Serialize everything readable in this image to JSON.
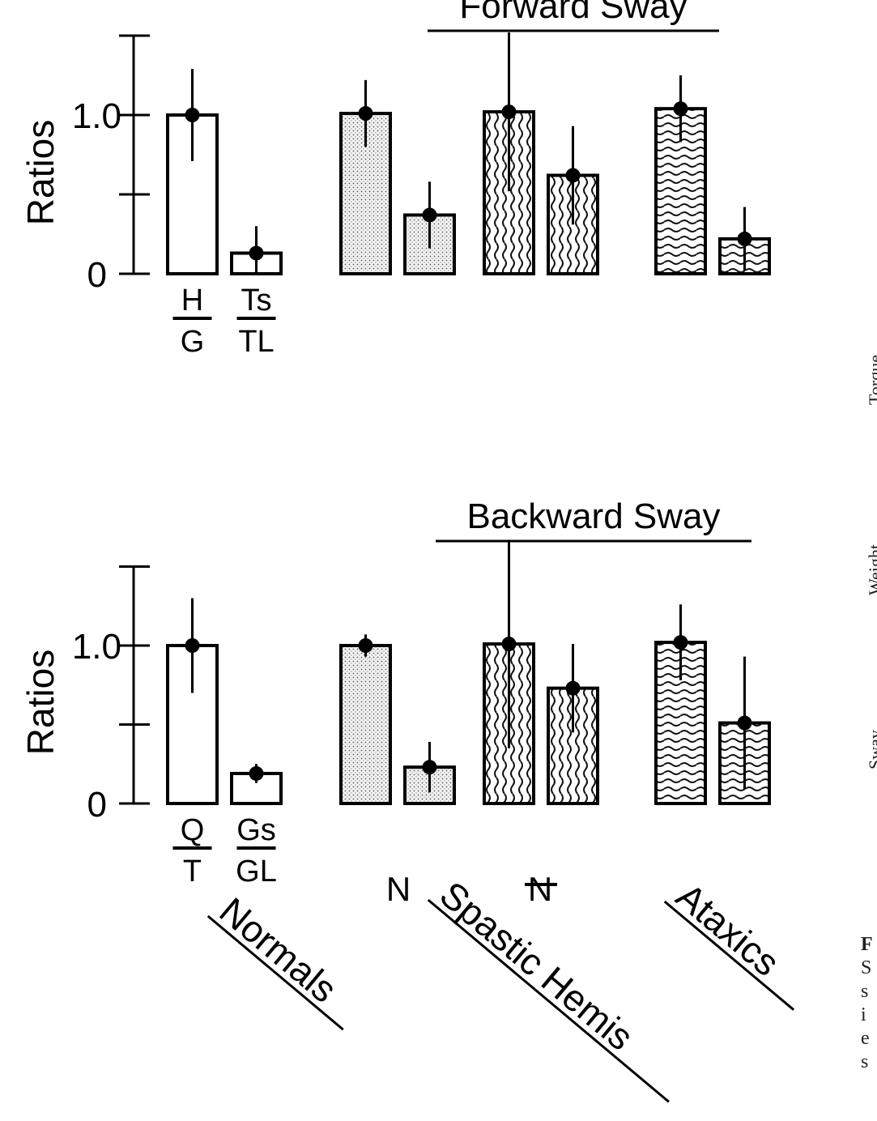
{
  "chart_data": [
    {
      "type": "bar",
      "title": "Forward Sway",
      "ylabel": "Ratios",
      "ylim": [
        0,
        1.5
      ],
      "yticks": [
        "0",
        "1.0"
      ],
      "normals_labels": [
        [
          "H",
          "G"
        ],
        [
          "Ts",
          "TL"
        ]
      ],
      "series": [
        {
          "group": "Normals",
          "values": [
            1.0,
            0.13
          ],
          "errors": [
            0.29,
            0.17
          ],
          "pattern": "none"
        },
        {
          "group": "Spastic Hemis N",
          "values": [
            1.01,
            0.37
          ],
          "errors": [
            0.21,
            0.21
          ],
          "pattern": "dots"
        },
        {
          "group": "Spastic Hemis affected",
          "values": [
            1.02,
            0.62
          ],
          "errors": [
            0.5,
            0.31
          ],
          "pattern": "vwave"
        },
        {
          "group": "Ataxics",
          "values": [
            1.04,
            0.22
          ],
          "errors": [
            0.21,
            0.2
          ],
          "pattern": "hwave"
        }
      ]
    },
    {
      "type": "bar",
      "title": "Backward Sway",
      "ylabel": "Ratios",
      "ylim": [
        0,
        1.5
      ],
      "yticks": [
        "0",
        "1.0"
      ],
      "normals_labels": [
        [
          "Q",
          "T"
        ],
        [
          "Gs",
          "GL"
        ]
      ],
      "series": [
        {
          "group": "Normals",
          "values": [
            1.0,
            0.19
          ],
          "errors": [
            0.3,
            0.06
          ],
          "pattern": "none"
        },
        {
          "group": "Spastic Hemis N",
          "values": [
            1.0,
            0.23
          ],
          "errors": [
            0.07,
            0.16
          ],
          "pattern": "dots"
        },
        {
          "group": "Spastic Hemis affected",
          "values": [
            1.01,
            0.73
          ],
          "errors": [
            0.66,
            0.28
          ],
          "pattern": "vwave"
        },
        {
          "group": "Ataxics",
          "values": [
            1.02,
            0.51
          ],
          "errors": [
            0.24,
            0.42
          ],
          "pattern": "hwave"
        }
      ]
    }
  ],
  "bottom_labels": {
    "normals": "Normals",
    "spastic": "Spastic Hemis",
    "ataxics": "Ataxics",
    "n_label": "N",
    "n_struck_label": "N"
  },
  "side_text": [
    "Torque",
    "Weight",
    "Sway"
  ],
  "caption_letters": [
    "F",
    "S",
    "s",
    "i",
    "e",
    "s"
  ]
}
